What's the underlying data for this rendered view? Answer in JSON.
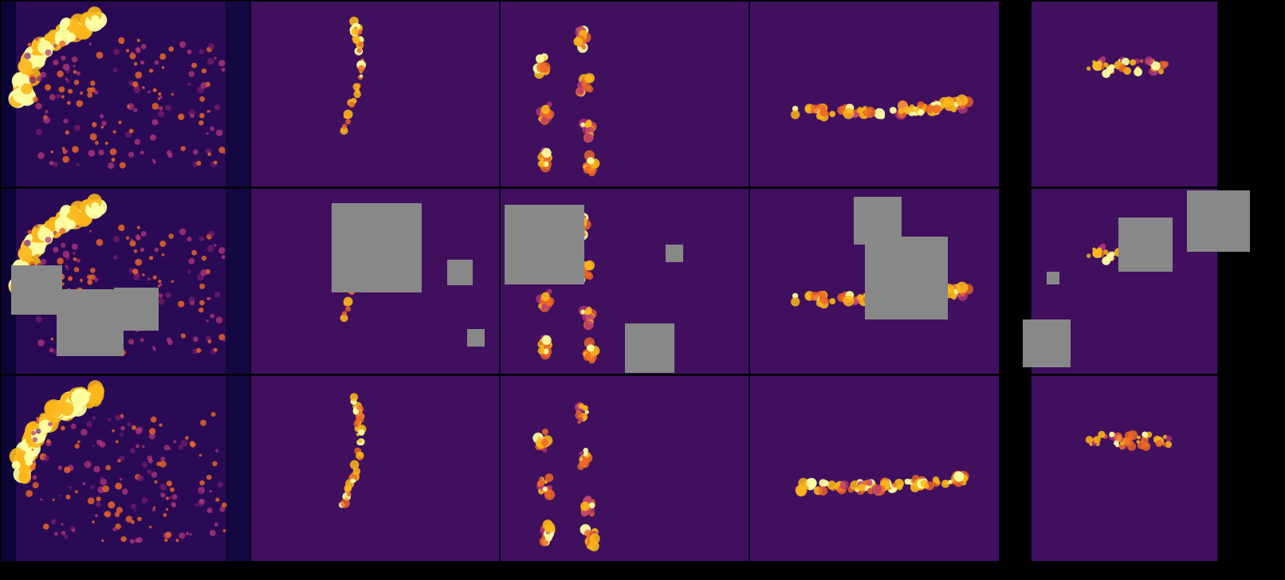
{
  "figure": {
    "rows": [
      "original",
      "masked",
      "reconstruction"
    ],
    "columns": 5,
    "background_color": "#000000",
    "mask_color": "#888888",
    "colormap": [
      "#0c0536",
      "#40105e",
      "#7a1d6d",
      "#b73779",
      "#ed6925",
      "#fbb61a",
      "#fcffa4"
    ],
    "scenes": [
      {
        "name": "scene-1",
        "description_token": "bright-arc"
      },
      {
        "name": "scene-2",
        "description_token": "thin-arc"
      },
      {
        "name": "scene-3",
        "description_token": "clusters"
      },
      {
        "name": "scene-4",
        "description_token": "horizontal-band"
      },
      {
        "name": "scene-5",
        "description_token": "small-patch"
      }
    ]
  }
}
